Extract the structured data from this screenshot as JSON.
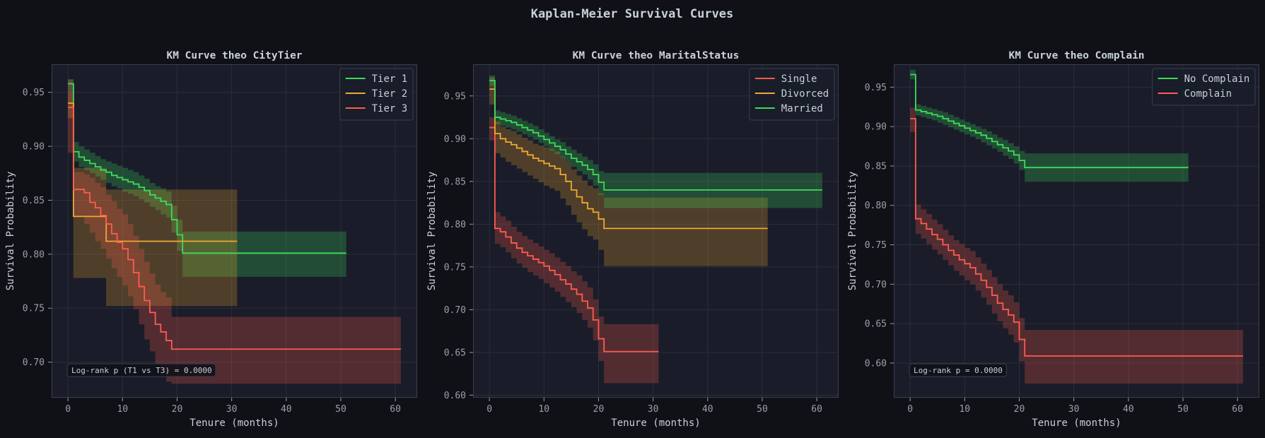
{
  "figure": {
    "title": "Kaplan-Meier Survival Curves",
    "background": "#0f1117",
    "panel_background": "#1a1d29",
    "text_color": "#c9d1d9",
    "tick_color": "#9aa0a8",
    "grid_color": "#2a2e3a"
  },
  "chart_data": [
    {
      "type": "line",
      "subtype": "kaplan-meier-step",
      "title": "KM Curve theo CityTier",
      "xlabel": "Tenure (months)",
      "ylabel": "Survival Probability",
      "xlim": [
        -3,
        64
      ],
      "ylim": [
        0.667,
        0.976
      ],
      "xticks": [
        0,
        10,
        20,
        30,
        40,
        50,
        60
      ],
      "yticks": [
        0.7,
        0.75,
        0.8,
        0.85,
        0.9,
        0.95
      ],
      "legend_position": "top-right",
      "annotation": "Log-rank p (T1 vs T3) = 0.0000",
      "annotation_position": "bottom-left",
      "series": [
        {
          "name": "Tier 1",
          "color": "#3ddc5a",
          "x": [
            0,
            1,
            2,
            3,
            4,
            5,
            6,
            7,
            8,
            9,
            10,
            11,
            12,
            13,
            14,
            15,
            16,
            17,
            18,
            19,
            20,
            21,
            51
          ],
          "y": [
            0.958,
            0.895,
            0.89,
            0.887,
            0.884,
            0.881,
            0.878,
            0.876,
            0.873,
            0.871,
            0.869,
            0.867,
            0.865,
            0.862,
            0.859,
            0.855,
            0.852,
            0.849,
            0.846,
            0.832,
            0.818,
            0.801,
            0.801
          ],
          "lower": [
            0.95,
            0.886,
            0.881,
            0.878,
            0.875,
            0.872,
            0.869,
            0.866,
            0.863,
            0.861,
            0.858,
            0.856,
            0.854,
            0.851,
            0.848,
            0.844,
            0.841,
            0.837,
            0.834,
            0.82,
            0.803,
            0.779,
            0.779
          ],
          "upper": [
            0.962,
            0.904,
            0.9,
            0.897,
            0.894,
            0.891,
            0.888,
            0.886,
            0.884,
            0.882,
            0.88,
            0.878,
            0.876,
            0.873,
            0.87,
            0.866,
            0.863,
            0.861,
            0.858,
            0.845,
            0.832,
            0.821,
            0.821
          ]
        },
        {
          "name": "Tier 2",
          "color": "#f0a830",
          "x": [
            0,
            1,
            7,
            31
          ],
          "y": [
            0.94,
            0.835,
            0.812,
            0.812
          ],
          "lower": [
            0.926,
            0.778,
            0.752,
            0.752
          ],
          "upper": [
            0.95,
            0.88,
            0.86,
            0.86
          ]
        },
        {
          "name": "Tier 3",
          "color": "#ff5c4d",
          "x": [
            0,
            1,
            3,
            4,
            5,
            6,
            7,
            8,
            9,
            10,
            11,
            12,
            13,
            14,
            15,
            16,
            17,
            18,
            19,
            61
          ],
          "y": [
            0.936,
            0.86,
            0.857,
            0.848,
            0.843,
            0.836,
            0.828,
            0.819,
            0.811,
            0.805,
            0.795,
            0.783,
            0.77,
            0.757,
            0.746,
            0.735,
            0.728,
            0.72,
            0.712,
            0.712
          ],
          "lower": [
            0.894,
            0.835,
            0.828,
            0.82,
            0.812,
            0.805,
            0.796,
            0.787,
            0.779,
            0.771,
            0.761,
            0.749,
            0.735,
            0.721,
            0.71,
            0.698,
            0.69,
            0.682,
            0.68,
            0.68
          ],
          "upper": [
            0.962,
            0.876,
            0.874,
            0.871,
            0.866,
            0.862,
            0.855,
            0.849,
            0.842,
            0.837,
            0.828,
            0.817,
            0.805,
            0.793,
            0.782,
            0.772,
            0.765,
            0.76,
            0.742,
            0.742
          ]
        }
      ]
    },
    {
      "type": "line",
      "subtype": "kaplan-meier-step",
      "title": "KM Curve theo MaritalStatus",
      "xlabel": "Tenure (months)",
      "ylabel": "Survival Probability",
      "xlim": [
        -3,
        64
      ],
      "ylim": [
        0.597,
        0.987
      ],
      "xticks": [
        0,
        10,
        20,
        30,
        40,
        50,
        60
      ],
      "yticks": [
        0.6,
        0.65,
        0.7,
        0.75,
        0.8,
        0.85,
        0.9,
        0.95
      ],
      "legend_position": "top-right",
      "annotation": "",
      "series": [
        {
          "name": "Single",
          "color": "#ff5c4d",
          "x": [
            0,
            1,
            2,
            3,
            4,
            5,
            6,
            7,
            8,
            9,
            10,
            11,
            12,
            13,
            14,
            15,
            16,
            17,
            18,
            19,
            20,
            21,
            31
          ],
          "y": [
            0.913,
            0.795,
            0.791,
            0.785,
            0.778,
            0.772,
            0.767,
            0.763,
            0.759,
            0.755,
            0.751,
            0.746,
            0.741,
            0.735,
            0.73,
            0.724,
            0.718,
            0.71,
            0.702,
            0.688,
            0.666,
            0.651,
            0.651
          ],
          "lower": [
            0.898,
            0.777,
            0.773,
            0.767,
            0.76,
            0.754,
            0.749,
            0.744,
            0.74,
            0.736,
            0.731,
            0.726,
            0.721,
            0.715,
            0.709,
            0.703,
            0.696,
            0.688,
            0.679,
            0.664,
            0.64,
            0.614,
            0.614
          ],
          "upper": [
            0.925,
            0.814,
            0.809,
            0.804,
            0.797,
            0.791,
            0.786,
            0.782,
            0.778,
            0.774,
            0.77,
            0.766,
            0.761,
            0.756,
            0.751,
            0.745,
            0.74,
            0.733,
            0.726,
            0.712,
            0.692,
            0.683,
            0.683
          ]
        },
        {
          "name": "Divorced",
          "color": "#f0a830",
          "x": [
            0,
            1,
            2,
            3,
            4,
            5,
            6,
            7,
            8,
            9,
            10,
            11,
            12,
            13,
            14,
            15,
            16,
            17,
            18,
            19,
            20,
            21,
            51
          ],
          "y": [
            0.958,
            0.906,
            0.9,
            0.896,
            0.893,
            0.889,
            0.885,
            0.881,
            0.877,
            0.874,
            0.871,
            0.868,
            0.865,
            0.858,
            0.85,
            0.84,
            0.832,
            0.825,
            0.818,
            0.814,
            0.806,
            0.795,
            0.795
          ],
          "lower": [
            0.94,
            0.883,
            0.878,
            0.873,
            0.869,
            0.865,
            0.861,
            0.857,
            0.853,
            0.849,
            0.845,
            0.842,
            0.839,
            0.83,
            0.822,
            0.811,
            0.802,
            0.794,
            0.786,
            0.782,
            0.77,
            0.751,
            0.751
          ],
          "upper": [
            0.972,
            0.92,
            0.914,
            0.911,
            0.909,
            0.905,
            0.901,
            0.898,
            0.894,
            0.892,
            0.89,
            0.888,
            0.885,
            0.879,
            0.872,
            0.864,
            0.857,
            0.851,
            0.845,
            0.842,
            0.836,
            0.831,
            0.831
          ]
        },
        {
          "name": "Married",
          "color": "#3ddc5a",
          "x": [
            0,
            1,
            2,
            3,
            4,
            5,
            6,
            7,
            8,
            9,
            10,
            11,
            12,
            13,
            14,
            15,
            16,
            17,
            18,
            19,
            20,
            21,
            61
          ],
          "y": [
            0.968,
            0.925,
            0.923,
            0.921,
            0.919,
            0.916,
            0.913,
            0.91,
            0.907,
            0.903,
            0.899,
            0.895,
            0.891,
            0.887,
            0.882,
            0.877,
            0.873,
            0.869,
            0.864,
            0.858,
            0.849,
            0.84,
            0.84
          ],
          "lower": [
            0.962,
            0.917,
            0.915,
            0.913,
            0.911,
            0.908,
            0.905,
            0.902,
            0.899,
            0.895,
            0.891,
            0.886,
            0.882,
            0.878,
            0.872,
            0.867,
            0.862,
            0.858,
            0.852,
            0.845,
            0.834,
            0.819,
            0.819
          ],
          "upper": [
            0.974,
            0.933,
            0.931,
            0.929,
            0.927,
            0.924,
            0.921,
            0.918,
            0.915,
            0.911,
            0.907,
            0.903,
            0.899,
            0.896,
            0.891,
            0.887,
            0.883,
            0.879,
            0.875,
            0.87,
            0.862,
            0.86,
            0.86
          ]
        }
      ]
    },
    {
      "type": "line",
      "subtype": "kaplan-meier-step",
      "title": "KM Curve theo Complain",
      "xlabel": "Tenure (months)",
      "ylabel": "Survival Probability",
      "xlim": [
        -3,
        64
      ],
      "ylim": [
        0.556,
        0.979
      ],
      "xticks": [
        0,
        10,
        20,
        30,
        40,
        50,
        60
      ],
      "yticks": [
        0.6,
        0.65,
        0.7,
        0.75,
        0.8,
        0.85,
        0.9,
        0.95
      ],
      "legend_position": "top-right",
      "annotation": "Log-rank p = 0.0000",
      "annotation_position": "bottom-left",
      "series": [
        {
          "name": "No Complain",
          "color": "#3ddc5a",
          "x": [
            0,
            1,
            2,
            3,
            4,
            5,
            6,
            7,
            8,
            9,
            10,
            11,
            12,
            13,
            14,
            15,
            16,
            17,
            18,
            19,
            20,
            21,
            51
          ],
          "y": [
            0.966,
            0.921,
            0.919,
            0.917,
            0.915,
            0.913,
            0.91,
            0.907,
            0.904,
            0.901,
            0.898,
            0.895,
            0.892,
            0.889,
            0.885,
            0.881,
            0.877,
            0.873,
            0.869,
            0.864,
            0.857,
            0.848,
            0.848
          ],
          "lower": [
            0.96,
            0.914,
            0.912,
            0.91,
            0.908,
            0.905,
            0.902,
            0.899,
            0.896,
            0.893,
            0.89,
            0.887,
            0.884,
            0.88,
            0.876,
            0.872,
            0.868,
            0.863,
            0.859,
            0.853,
            0.845,
            0.83,
            0.83
          ],
          "upper": [
            0.972,
            0.928,
            0.926,
            0.924,
            0.922,
            0.92,
            0.918,
            0.915,
            0.912,
            0.909,
            0.906,
            0.903,
            0.9,
            0.897,
            0.894,
            0.89,
            0.886,
            0.883,
            0.879,
            0.875,
            0.869,
            0.866,
            0.866
          ]
        },
        {
          "name": "Complain",
          "color": "#ff5c4d",
          "x": [
            0,
            1,
            2,
            3,
            4,
            5,
            6,
            7,
            8,
            9,
            10,
            11,
            12,
            13,
            14,
            15,
            16,
            17,
            18,
            19,
            20,
            21,
            61
          ],
          "y": [
            0.91,
            0.783,
            0.777,
            0.77,
            0.763,
            0.757,
            0.75,
            0.743,
            0.737,
            0.731,
            0.726,
            0.721,
            0.713,
            0.705,
            0.696,
            0.686,
            0.676,
            0.668,
            0.661,
            0.652,
            0.63,
            0.609,
            0.609
          ],
          "lower": [
            0.893,
            0.764,
            0.758,
            0.751,
            0.744,
            0.738,
            0.731,
            0.724,
            0.717,
            0.711,
            0.705,
            0.7,
            0.692,
            0.683,
            0.674,
            0.663,
            0.653,
            0.644,
            0.636,
            0.626,
            0.602,
            0.574,
            0.574
          ],
          "upper": [
            0.924,
            0.801,
            0.795,
            0.789,
            0.782,
            0.776,
            0.769,
            0.762,
            0.756,
            0.751,
            0.746,
            0.742,
            0.734,
            0.726,
            0.718,
            0.709,
            0.7,
            0.692,
            0.686,
            0.677,
            0.657,
            0.642,
            0.642
          ]
        }
      ]
    }
  ]
}
